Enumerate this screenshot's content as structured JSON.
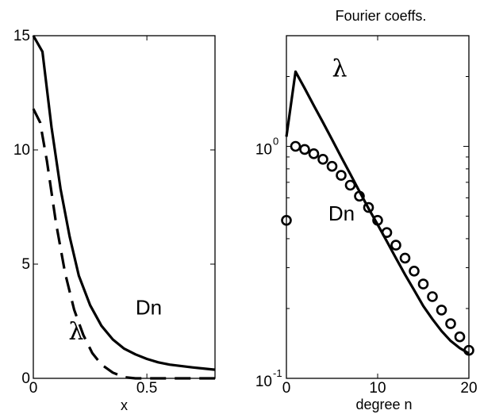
{
  "chart_data": [
    {
      "type": "line",
      "title": "",
      "xlabel": "x",
      "ylabel": "",
      "xlim": [
        0,
        0.8
      ],
      "ylim": [
        0,
        15
      ],
      "grid": false,
      "xticks": [
        {
          "value": 0,
          "label": "0"
        },
        {
          "value": 0.5,
          "label": "0.5"
        }
      ],
      "yticks": [
        {
          "value": 0,
          "label": "0"
        },
        {
          "value": 5,
          "label": "5"
        },
        {
          "value": 10,
          "label": "10"
        },
        {
          "value": 15,
          "label": "15"
        }
      ],
      "series": [
        {
          "style": "solid",
          "x": [
            0,
            0.04,
            0.08,
            0.12,
            0.16,
            0.2,
            0.25,
            0.3,
            0.35,
            0.4,
            0.45,
            0.5,
            0.55,
            0.6,
            0.7,
            0.8
          ],
          "y": [
            15,
            14.3,
            11.0,
            8.3,
            6.2,
            4.5,
            3.2,
            2.3,
            1.7,
            1.3,
            1.05,
            0.85,
            0.7,
            0.6,
            0.48,
            0.38
          ]
        },
        {
          "style": "dashed",
          "x": [
            0,
            0.03,
            0.06,
            0.1,
            0.14,
            0.18,
            0.22,
            0.26,
            0.3,
            0.35,
            0.4,
            0.45,
            0.5,
            0.6,
            0.7,
            0.8
          ],
          "y": [
            11.8,
            11.2,
            9.5,
            6.8,
            4.6,
            3.0,
            1.9,
            1.1,
            0.6,
            0.25,
            0.05,
            0.0,
            0.0,
            0.0,
            0.0,
            0.0
          ]
        }
      ],
      "annotations": [
        {
          "text": "Dn",
          "x": 0.45,
          "y": 2.8
        },
        {
          "text": "λ",
          "x": 0.155,
          "y": 1.7
        }
      ]
    },
    {
      "type": "line",
      "title": "Fourier coeffs.",
      "xlabel": "degree n",
      "ylabel": "",
      "yscale": "log",
      "xlim": [
        0,
        20
      ],
      "ylim": [
        0.1,
        3
      ],
      "grid": false,
      "xticks": [
        {
          "value": 0,
          "label": "0"
        },
        {
          "value": 10,
          "label": "10"
        },
        {
          "value": 20,
          "label": "20"
        }
      ],
      "yticks": [
        {
          "value": 0.1,
          "label": "10",
          "exp": "-1"
        },
        {
          "value": 1,
          "label": "10",
          "exp": "0"
        }
      ],
      "series": [
        {
          "style": "solid",
          "x": [
            0,
            1,
            2,
            3,
            4,
            5,
            6,
            7,
            8,
            9,
            10,
            11,
            12,
            13,
            14,
            15,
            16,
            17,
            18,
            19,
            20
          ],
          "y": [
            1.1,
            2.1,
            1.78,
            1.5,
            1.27,
            1.07,
            0.9,
            0.76,
            0.64,
            0.54,
            0.46,
            0.39,
            0.33,
            0.28,
            0.24,
            0.205,
            0.18,
            0.16,
            0.145,
            0.135,
            0.128
          ]
        },
        {
          "style": "circle-markers",
          "x": [
            0,
            1,
            2,
            3,
            4,
            5,
            6,
            7,
            8,
            9,
            10,
            11,
            12,
            13,
            14,
            15,
            16,
            17,
            18,
            19,
            20
          ],
          "y": [
            0.48,
            1.0,
            0.97,
            0.93,
            0.88,
            0.82,
            0.75,
            0.68,
            0.61,
            0.545,
            0.48,
            0.425,
            0.375,
            0.33,
            0.29,
            0.255,
            0.225,
            0.197,
            0.172,
            0.151,
            0.132
          ]
        }
      ],
      "annotations": [
        {
          "text": "λ",
          "x": 5.0,
          "y": 2.0
        },
        {
          "text": "Dn",
          "x": 4.6,
          "y": 0.48
        }
      ]
    }
  ]
}
